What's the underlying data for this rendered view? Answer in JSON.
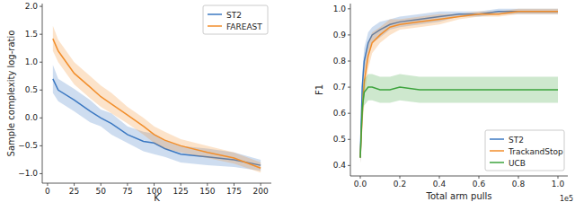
{
  "chart_data": [
    {
      "type": "line",
      "x_label": "K",
      "y_label": "Sample complexity log-ratio",
      "x": [
        5,
        10,
        25,
        40,
        50,
        60,
        75,
        90,
        100,
        110,
        125,
        150,
        175,
        200
      ],
      "series": [
        {
          "name": "ST2",
          "color": "#3b78c2",
          "values": [
            0.7,
            0.5,
            0.32,
            0.12,
            0.0,
            -0.1,
            -0.3,
            -0.42,
            -0.45,
            -0.55,
            -0.65,
            -0.7,
            -0.75,
            -0.85
          ],
          "lower": [
            0.45,
            0.3,
            0.12,
            -0.08,
            -0.15,
            -0.3,
            -0.45,
            -0.6,
            -0.65,
            -0.7,
            -0.8,
            -0.85,
            -0.88,
            -0.95
          ],
          "upper": [
            0.95,
            0.7,
            0.52,
            0.32,
            0.15,
            0.08,
            -0.15,
            -0.25,
            -0.28,
            -0.4,
            -0.5,
            -0.55,
            -0.62,
            -0.75
          ]
        },
        {
          "name": "FAREAST",
          "color": "#f28e2b",
          "values": [
            1.42,
            1.2,
            0.8,
            0.55,
            0.38,
            0.25,
            0.05,
            -0.15,
            -0.3,
            -0.4,
            -0.5,
            -0.62,
            -0.72,
            -0.9
          ],
          "lower": [
            1.2,
            1.0,
            0.6,
            0.35,
            0.2,
            0.08,
            -0.1,
            -0.3,
            -0.45,
            -0.55,
            -0.62,
            -0.72,
            -0.82,
            -0.98
          ],
          "upper": [
            1.65,
            1.4,
            1.0,
            0.75,
            0.58,
            0.45,
            0.2,
            0.0,
            -0.15,
            -0.25,
            -0.38,
            -0.5,
            -0.62,
            -0.8
          ]
        }
      ],
      "xlim": [
        -5,
        210
      ],
      "ylim": [
        -1.17,
        2.05
      ],
      "xticks": [
        0,
        25,
        50,
        75,
        100,
        125,
        150,
        175,
        200
      ],
      "yticks": [
        {
          "value": -1,
          "label": "−1.0"
        },
        {
          "value": -0.5,
          "label": "−0.5"
        },
        {
          "value": 0,
          "label": "0.0"
        },
        {
          "value": 0.5,
          "label": "0.5"
        },
        {
          "value": 1,
          "label": "1.0"
        },
        {
          "value": 1.5,
          "label": "1.5"
        },
        {
          "value": 2,
          "label": "2.0"
        }
      ],
      "legend": "upper right",
      "grid": false
    },
    {
      "type": "line",
      "x_label": "Total arm pulls",
      "y_label": "F1",
      "annotations": [
        "1e5"
      ],
      "x": [
        0,
        0.01,
        0.02,
        0.04,
        0.06,
        0.1,
        0.15,
        0.2,
        0.3,
        0.4,
        0.5,
        0.6,
        0.7,
        0.8,
        0.9,
        1.0
      ],
      "series": [
        {
          "name": "ST2",
          "color": "#3b78c2",
          "values": [
            0.43,
            0.7,
            0.8,
            0.87,
            0.9,
            0.92,
            0.94,
            0.95,
            0.96,
            0.97,
            0.98,
            0.98,
            0.99,
            0.99,
            0.99,
            0.99
          ],
          "lower": [
            0.41,
            0.64,
            0.75,
            0.83,
            0.87,
            0.89,
            0.92,
            0.93,
            0.94,
            0.95,
            0.97,
            0.97,
            0.98,
            0.98,
            0.98,
            0.98
          ],
          "upper": [
            0.45,
            0.76,
            0.85,
            0.91,
            0.93,
            0.95,
            0.96,
            0.97,
            0.98,
            0.99,
            0.99,
            0.99,
            1.0,
            1.0,
            1.0,
            1.0
          ]
        },
        {
          "name": "TrackandStop",
          "color": "#f28e2b",
          "values": [
            0.43,
            0.6,
            0.72,
            0.82,
            0.87,
            0.9,
            0.93,
            0.94,
            0.95,
            0.96,
            0.97,
            0.98,
            0.98,
            0.99,
            0.99,
            0.99
          ],
          "lower": [
            0.41,
            0.53,
            0.66,
            0.77,
            0.83,
            0.87,
            0.9,
            0.92,
            0.93,
            0.94,
            0.96,
            0.97,
            0.97,
            0.98,
            0.98,
            0.98
          ],
          "upper": [
            0.45,
            0.67,
            0.78,
            0.87,
            0.91,
            0.93,
            0.96,
            0.96,
            0.97,
            0.98,
            0.98,
            0.99,
            0.99,
            1.0,
            1.0,
            1.0
          ]
        },
        {
          "name": "UCB",
          "color": "#3da33d",
          "values": [
            0.43,
            0.62,
            0.68,
            0.7,
            0.7,
            0.69,
            0.69,
            0.7,
            0.69,
            0.69,
            0.69,
            0.69,
            0.69,
            0.69,
            0.69,
            0.69
          ],
          "lower": [
            0.41,
            0.57,
            0.63,
            0.65,
            0.65,
            0.64,
            0.64,
            0.65,
            0.64,
            0.64,
            0.64,
            0.64,
            0.64,
            0.64,
            0.64,
            0.64
          ],
          "upper": [
            0.45,
            0.67,
            0.73,
            0.75,
            0.75,
            0.74,
            0.74,
            0.75,
            0.74,
            0.74,
            0.74,
            0.74,
            0.74,
            0.74,
            0.74,
            0.74
          ]
        }
      ],
      "xlim": [
        -0.05,
        1.05
      ],
      "ylim": [
        0.36,
        1.02
      ],
      "xticks": [
        {
          "value": 0,
          "label": "0.0"
        },
        {
          "value": 0.2,
          "label": "0.2"
        },
        {
          "value": 0.4,
          "label": "0.4"
        },
        {
          "value": 0.6,
          "label": "0.6"
        },
        {
          "value": 0.8,
          "label": "0.8"
        },
        {
          "value": 1,
          "label": "1.0"
        }
      ],
      "yticks": [
        0.4,
        0.5,
        0.6,
        0.7,
        0.8,
        0.9,
        {
          "value": 1,
          "label": "1.0"
        }
      ],
      "legend": "lower right",
      "grid": false
    }
  ]
}
